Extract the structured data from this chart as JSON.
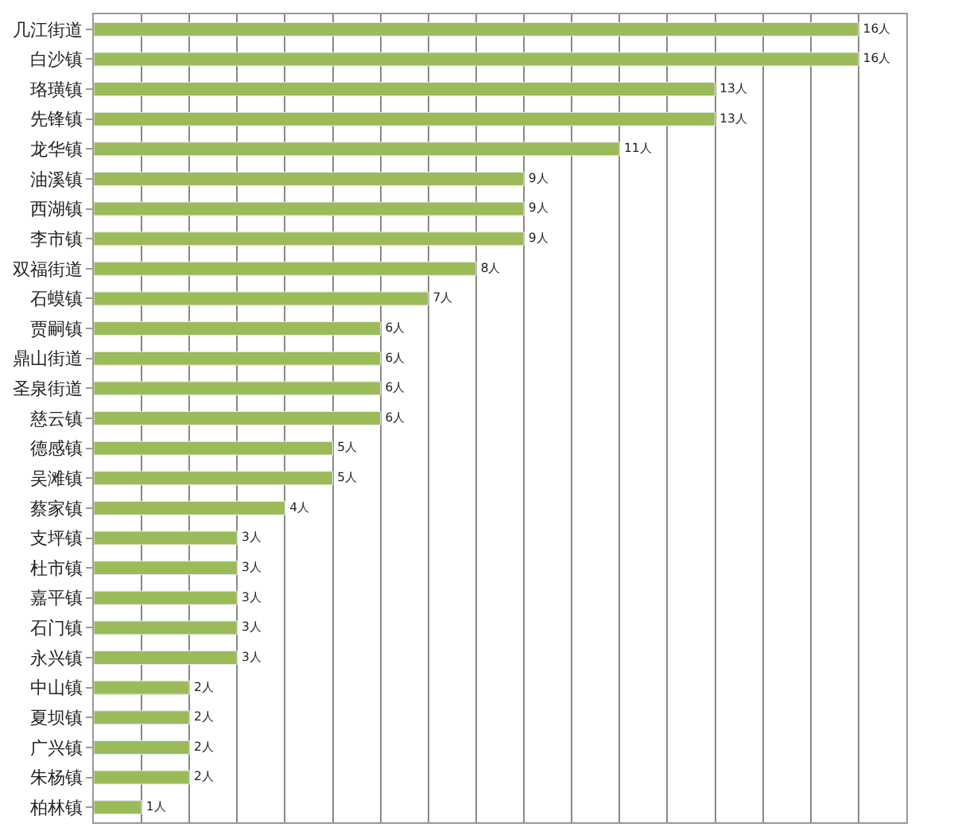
{
  "chart_data": {
    "type": "bar",
    "orientation": "horizontal",
    "categories": [
      "几江街道",
      "白沙镇",
      "珞璜镇",
      "先锋镇",
      "龙华镇",
      "油溪镇",
      "西湖镇",
      "李市镇",
      "双福街道",
      "石蟆镇",
      "贾嗣镇",
      "鼎山街道",
      "圣泉街道",
      "慈云镇",
      "德感镇",
      "吴滩镇",
      "蔡家镇",
      "支坪镇",
      "杜市镇",
      "嘉平镇",
      "石门镇",
      "永兴镇",
      "中山镇",
      "夏坝镇",
      "广兴镇",
      "朱杨镇",
      "柏林镇"
    ],
    "values": [
      16,
      16,
      13,
      13,
      11,
      9,
      9,
      9,
      8,
      7,
      6,
      6,
      6,
      6,
      5,
      5,
      4,
      3,
      3,
      3,
      3,
      3,
      2,
      2,
      2,
      2,
      1
    ],
    "value_labels": [
      "16人",
      "16人",
      "13人",
      "13人",
      "11人",
      "9人",
      "9人",
      "9人",
      "8人",
      "7人",
      "6人",
      "6人",
      "6人",
      "6人",
      "5人",
      "5人",
      "4人",
      "3人",
      "3人",
      "3人",
      "3人",
      "3人",
      "2人",
      "2人",
      "2人",
      "2人",
      "1人"
    ],
    "color": "#9bbb59",
    "xlim": [
      0,
      17
    ],
    "xticks": [
      {
        "value": 0,
        "label": null
      },
      {
        "value": 1,
        "label": null
      },
      {
        "value": 2,
        "label": null
      },
      {
        "value": 3,
        "label": null
      },
      {
        "value": 4,
        "label": null
      },
      {
        "value": 5,
        "label": null
      },
      {
        "value": 6,
        "label": null
      },
      {
        "value": 7,
        "label": null
      },
      {
        "value": 8,
        "label": null
      },
      {
        "value": 9,
        "label": null
      },
      {
        "value": 10,
        "label": null
      },
      {
        "value": 11,
        "label": null
      },
      {
        "value": 12,
        "label": null
      },
      {
        "value": 13,
        "label": null
      },
      {
        "value": 14,
        "label": null
      },
      {
        "value": 15,
        "label": null
      },
      {
        "value": 16,
        "label": null
      },
      {
        "value": 17,
        "label": null
      }
    ],
    "grid": "x",
    "legend": false,
    "tick_labels": "y"
  }
}
